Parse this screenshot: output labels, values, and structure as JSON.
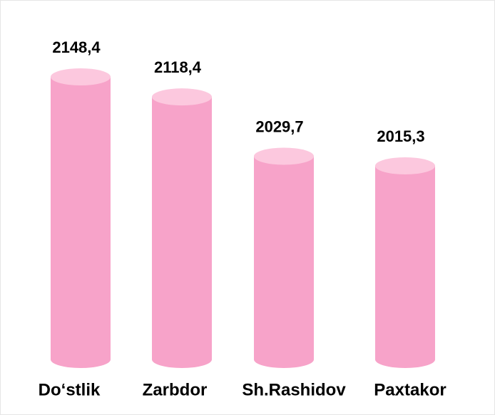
{
  "chart_data": {
    "type": "bar",
    "categories": [
      "Do‘stlik",
      "Zarbdor",
      "Sh.Rashidov",
      "Paxtakor"
    ],
    "values": [
      2148.4,
      2118.4,
      2029.7,
      2015.3
    ],
    "value_labels": [
      "2148,4",
      "2118,4",
      "2029,7",
      "2015,3"
    ],
    "color": "#f7a3c9"
  }
}
